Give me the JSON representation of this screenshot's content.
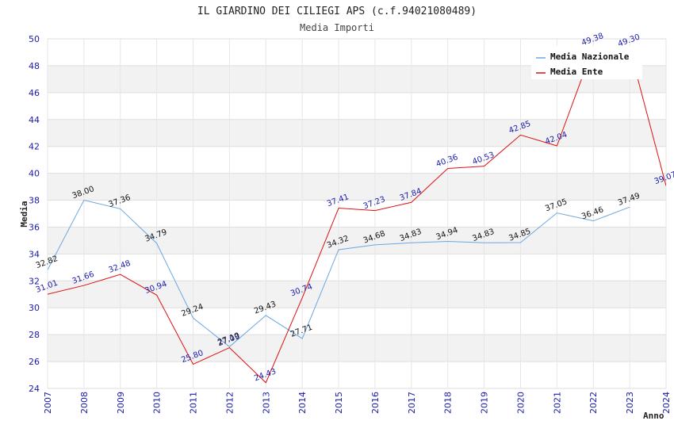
{
  "chart_data": {
    "type": "line",
    "title": "IL GIARDINO DEI CILIEGI APS (c.f.94021080489)",
    "subtitle": "Media Importi",
    "xlabel": "Anno",
    "ylabel": "Media",
    "ylim": [
      24,
      50
    ],
    "yticks": [
      "24",
      "26",
      "28",
      "30",
      "32",
      "34",
      "36",
      "38",
      "40",
      "42",
      "44",
      "46",
      "48",
      "50"
    ],
    "xlim": [
      2007,
      2024
    ],
    "categories": [
      "2007",
      "2008",
      "2009",
      "2010",
      "2011",
      "2012",
      "2013",
      "2014",
      "2015",
      "2016",
      "2017",
      "2018",
      "2019",
      "2020",
      "2021",
      "2022",
      "2023",
      "2024"
    ],
    "legend_position": "top-right",
    "series": [
      {
        "name": "Media Nazionale",
        "color": "#6aa8e0",
        "x": [
          2007,
          2008,
          2009,
          2010,
          2011,
          2012,
          2013,
          2014,
          2015,
          2016,
          2017,
          2018,
          2019,
          2020,
          2021,
          2022,
          2023
        ],
        "values": [
          32.82,
          38.0,
          37.36,
          34.79,
          29.24,
          27.1,
          29.43,
          27.71,
          34.32,
          34.68,
          34.83,
          34.94,
          34.83,
          34.85,
          37.05,
          36.46,
          37.49
        ],
        "labels": [
          "32.82",
          "38.00",
          "37.36",
          "34.79",
          "29.24",
          "27.10",
          "29.43",
          "27.71",
          "34.32",
          "34.68",
          "34.83",
          "34.94",
          "34.83",
          "34.85",
          "37.05",
          "36.46",
          "37.49"
        ]
      },
      {
        "name": "Media Ente",
        "color": "#dd1111",
        "x": [
          2007,
          2008,
          2009,
          2010,
          2011,
          2012,
          2013,
          2014,
          2015,
          2016,
          2017,
          2018,
          2019,
          2020,
          2021,
          2022,
          2023,
          2024
        ],
        "values": [
          31.01,
          31.66,
          32.48,
          30.94,
          25.8,
          27.03,
          24.43,
          30.74,
          37.41,
          37.23,
          37.84,
          40.36,
          40.53,
          42.85,
          42.04,
          49.38,
          49.3,
          39.07
        ],
        "labels": [
          "31.01",
          "31.66",
          "32.48",
          "30.94",
          "25.80",
          "27.03",
          "24.43",
          "30.74",
          "37.41",
          "37.23",
          "37.84",
          "40.36",
          "40.53",
          "42.85",
          "42.04",
          "49.38",
          "49.30",
          "39.07"
        ]
      }
    ]
  }
}
